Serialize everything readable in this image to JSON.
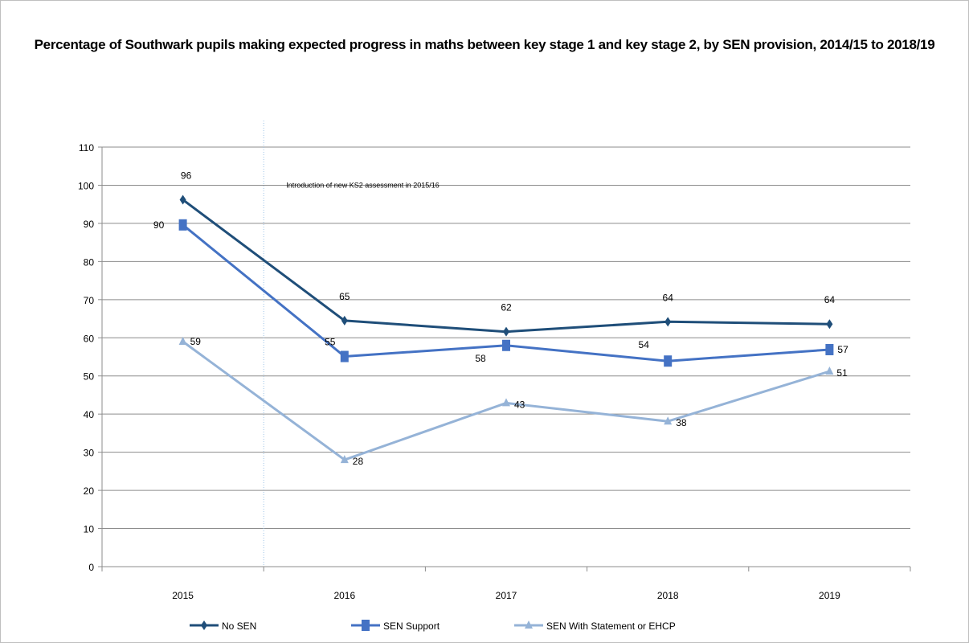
{
  "chart_data": {
    "type": "line",
    "title": "Percentage of Southwark pupils making expected progress in maths between key stage 1 and key stage 2, by SEN provision, 2014/15 to 2018/19",
    "xlabel": "",
    "ylabel": "",
    "categories": [
      "2015",
      "2016",
      "2017",
      "2018",
      "2019"
    ],
    "ylim": [
      0,
      110
    ],
    "y_ticks": [
      0,
      10,
      20,
      30,
      40,
      50,
      60,
      70,
      80,
      90,
      100,
      110
    ],
    "grid": "horizontal",
    "legend_position": "bottom",
    "annotation": {
      "text": "Introduction of new KS2 assessment in 2015/16",
      "between": [
        "2015",
        "2016"
      ]
    },
    "series": [
      {
        "name": "No SEN",
        "color": "#1f4e79",
        "marker": "diamond",
        "values": [
          96.2,
          64.5,
          61.6,
          64.2,
          63.6
        ],
        "labels": [
          "96",
          "65",
          "62",
          "64",
          "64"
        ]
      },
      {
        "name": "SEN Support",
        "color": "#4472c4",
        "marker": "square",
        "values": [
          89.6,
          55.1,
          58.0,
          53.9,
          56.9
        ],
        "labels": [
          "90",
          "55",
          "58",
          "54",
          "57"
        ]
      },
      {
        "name": "SEN With Statement or EHCP",
        "color": "#95b3d7",
        "marker": "triangle",
        "values": [
          59.0,
          28.0,
          42.9,
          38.1,
          51.2
        ],
        "labels": [
          "59",
          "28",
          "43",
          "38",
          "51"
        ]
      }
    ]
  }
}
